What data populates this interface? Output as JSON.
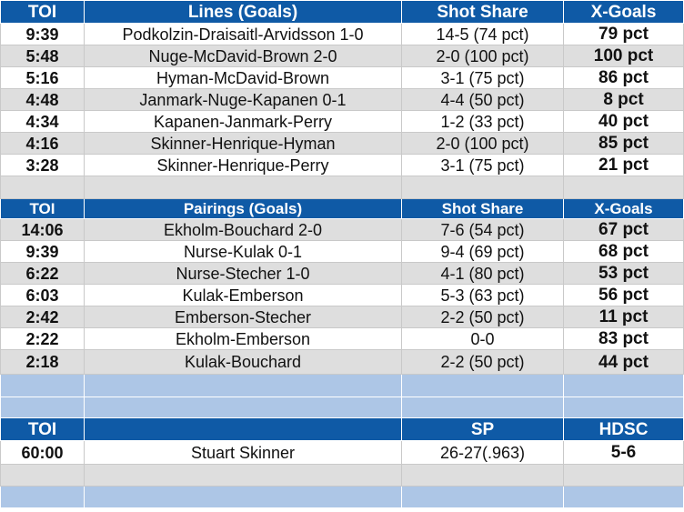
{
  "lines": {
    "headers": [
      "TOI",
      "Lines (Goals)",
      "Shot Share",
      "X-Goals"
    ],
    "rows": [
      {
        "toi": "9:39",
        "name": "Podkolzin-Draisaitl-Arvidsson 1-0",
        "share": "14-5 (74 pct)",
        "xg": "79 pct"
      },
      {
        "toi": "5:48",
        "name": "Nuge-McDavid-Brown 2-0",
        "share": "2-0 (100 pct)",
        "xg": "100 pct"
      },
      {
        "toi": "5:16",
        "name": "Hyman-McDavid-Brown",
        "share": "3-1 (75 pct)",
        "xg": "86 pct"
      },
      {
        "toi": "4:48",
        "name": "Janmark-Nuge-Kapanen 0-1",
        "share": "4-4 (50 pct)",
        "xg": "8 pct"
      },
      {
        "toi": "4:34",
        "name": "Kapanen-Janmark-Perry",
        "share": "1-2 (33 pct)",
        "xg": "40 pct"
      },
      {
        "toi": "4:16",
        "name": "Skinner-Henrique-Hyman",
        "share": "2-0 (100 pct)",
        "xg": "85 pct"
      },
      {
        "toi": "3:28",
        "name": "Skinner-Henrique-Perry",
        "share": "3-1 (75 pct)",
        "xg": "21 pct"
      }
    ]
  },
  "pairings": {
    "headers": [
      "TOI",
      "Pairings (Goals)",
      "Shot Share",
      "X-Goals"
    ],
    "rows": [
      {
        "toi": "14:06",
        "name": "Ekholm-Bouchard 2-0",
        "share": "7-6 (54 pct)",
        "xg": "67 pct"
      },
      {
        "toi": "9:39",
        "name": "Nurse-Kulak 0-1",
        "share": "9-4 (69 pct)",
        "xg": "68 pct"
      },
      {
        "toi": "6:22",
        "name": "Nurse-Stecher 1-0",
        "share": "4-1 (80 pct)",
        "xg": "53 pct"
      },
      {
        "toi": "6:03",
        "name": "Kulak-Emberson",
        "share": "5-3 (63 pct)",
        "xg": "56 pct"
      },
      {
        "toi": "2:42",
        "name": "Emberson-Stecher",
        "share": "2-2 (50 pct)",
        "xg": "11 pct"
      },
      {
        "toi": "2:22",
        "name": "Ekholm-Emberson",
        "share": "0-0",
        "xg": "83 pct"
      },
      {
        "toi": "2:18",
        "name": "Kulak-Bouchard",
        "share": "2-2 (50 pct)",
        "xg": "44 pct"
      }
    ]
  },
  "goalie": {
    "headers": [
      "TOI",
      "",
      "SP",
      "HDSC"
    ],
    "rows": [
      {
        "toi": "60:00",
        "name": "Stuart Skinner",
        "share": "26-27(.963)",
        "xg": "5-6"
      }
    ]
  }
}
